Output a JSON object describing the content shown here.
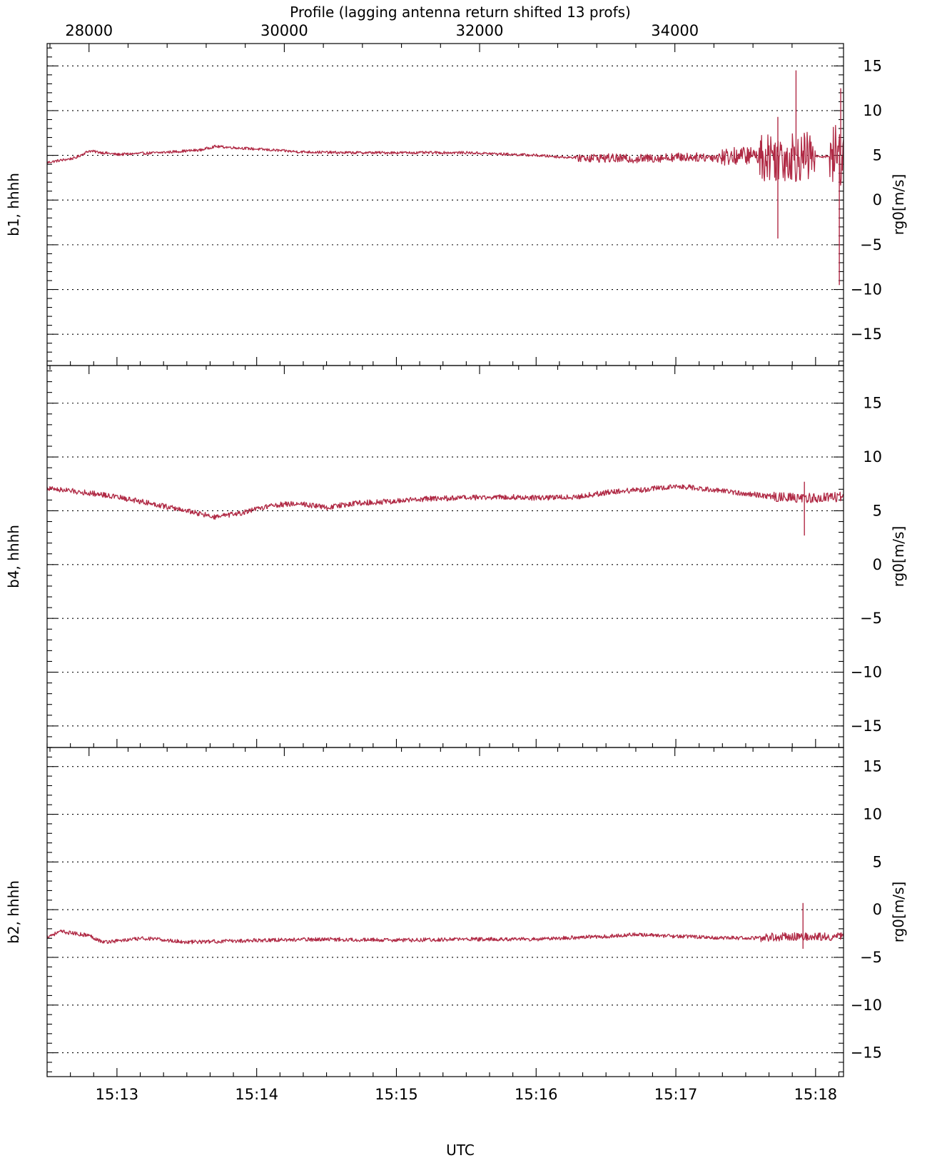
{
  "chart_data": {
    "type": "line",
    "top_axis": {
      "label": "Profile (lagging antenna return shifted 13 profs)",
      "ticks": [
        28000,
        30000,
        32000,
        34000
      ],
      "tick_labels": [
        "28000",
        "30000",
        "32000",
        "34000"
      ]
    },
    "x_axis": {
      "label": "UTC",
      "unit": "minutes",
      "range": [
        912.5,
        918.2
      ],
      "ticks": [
        913,
        914,
        915,
        916,
        917,
        918
      ],
      "tick_labels": [
        "15:13",
        "15:14",
        "15:15",
        "15:16",
        "15:17",
        "15:18"
      ]
    },
    "grid": true,
    "line_color": "#b02a45",
    "panels": [
      {
        "left_label": "b1, hhhh",
        "right_label": "rg0[m/s]",
        "ylim": [
          -18.5,
          17.5
        ],
        "yticks": [
          -15,
          -10,
          -5,
          0,
          5,
          10,
          15
        ],
        "ytick_labels": [
          "−15",
          "−10",
          "−5",
          "0",
          "5",
          "10",
          "15"
        ],
        "series": {
          "x": [
            912.5,
            912.7,
            912.8,
            913.0,
            913.3,
            913.6,
            913.7,
            914.0,
            914.3,
            914.6,
            915.0,
            915.5,
            916.0,
            916.2,
            916.5,
            916.7,
            917.0,
            917.3,
            917.5,
            917.7,
            917.9,
            918.1,
            918.2
          ],
          "y": [
            4.2,
            4.7,
            5.5,
            5.1,
            5.3,
            5.6,
            6.0,
            5.7,
            5.4,
            5.3,
            5.3,
            5.3,
            5.0,
            4.8,
            4.7,
            4.6,
            4.8,
            4.8,
            5.0,
            4.9,
            4.8,
            4.9,
            5.0
          ]
        },
        "noise": [
          {
            "from": 916.3,
            "to": 917.3,
            "amp": 0.5
          },
          {
            "from": 917.3,
            "to": 917.6,
            "amp": 1.0
          },
          {
            "from": 917.6,
            "to": 918.0,
            "amp": 2.8
          },
          {
            "from": 918.1,
            "to": 918.2,
            "amp": 3.5
          }
        ],
        "spikes": [
          {
            "x": 917.86,
            "from": 5.0,
            "to": 14.5
          },
          {
            "x": 917.73,
            "from": 5.0,
            "to": -4.3
          },
          {
            "x": 917.73,
            "from": 5.0,
            "to": 9.3
          },
          {
            "x": 918.17,
            "from": 5.0,
            "to": -9.5
          },
          {
            "x": 918.18,
            "from": 5.0,
            "to": 12.5
          }
        ]
      },
      {
        "left_label": "b4, hhhh",
        "right_label": "rg0[m/s]",
        "ylim": [
          -17,
          18.5
        ],
        "yticks": [
          -15,
          -10,
          -5,
          0,
          5,
          10,
          15
        ],
        "ytick_labels": [
          "−15",
          "−10",
          "−5",
          "0",
          "5",
          "10",
          "15"
        ],
        "series": {
          "x": [
            912.5,
            912.7,
            912.9,
            913.2,
            913.5,
            913.7,
            913.9,
            914.1,
            914.3,
            914.5,
            914.7,
            915.0,
            915.2,
            915.5,
            915.8,
            916.0,
            916.3,
            916.5,
            916.8,
            917.0,
            917.3,
            917.5,
            917.7,
            917.9,
            918.0,
            918.2
          ],
          "y": [
            7.1,
            6.8,
            6.5,
            5.8,
            5.0,
            4.4,
            4.8,
            5.5,
            5.7,
            5.3,
            5.7,
            5.9,
            6.1,
            6.2,
            6.3,
            6.2,
            6.3,
            6.7,
            7.0,
            7.3,
            6.9,
            6.6,
            6.3,
            6.2,
            6.2,
            6.3
          ]
        },
        "noise": [
          {
            "from": 912.5,
            "to": 917.7,
            "amp": 0.25
          },
          {
            "from": 917.7,
            "to": 918.2,
            "amp": 0.45
          }
        ],
        "spikes": [
          {
            "x": 917.92,
            "from": 6.2,
            "to": 2.7
          },
          {
            "x": 917.92,
            "from": 6.2,
            "to": 7.7
          }
        ]
      },
      {
        "left_label": "b2, hhhh",
        "right_label": "rg0[m/s]",
        "ylim": [
          -17.5,
          17
        ],
        "yticks": [
          -15,
          -10,
          -5,
          0,
          5,
          10,
          15
        ],
        "ytick_labels": [
          "−15",
          "−10",
          "−5",
          "0",
          "5",
          "10",
          "15"
        ],
        "series": {
          "x": [
            912.5,
            912.6,
            912.8,
            912.9,
            913.2,
            913.5,
            913.8,
            914.0,
            914.5,
            915.0,
            915.5,
            916.0,
            916.3,
            916.5,
            916.7,
            917.0,
            917.5,
            917.8,
            918.0,
            918.2
          ],
          "y": [
            -2.8,
            -2.3,
            -2.7,
            -3.4,
            -3.0,
            -3.4,
            -3.3,
            -3.2,
            -3.1,
            -3.2,
            -3.1,
            -3.1,
            -2.9,
            -2.8,
            -2.6,
            -2.8,
            -3.0,
            -2.8,
            -2.8,
            -2.8
          ]
        },
        "noise": [
          {
            "from": 912.5,
            "to": 917.6,
            "amp": 0.2
          },
          {
            "from": 917.6,
            "to": 918.2,
            "amp": 0.45
          }
        ],
        "spikes": [
          {
            "x": 917.91,
            "from": -2.8,
            "to": 0.7
          },
          {
            "x": 917.91,
            "from": -2.8,
            "to": -4.1
          }
        ]
      }
    ]
  }
}
